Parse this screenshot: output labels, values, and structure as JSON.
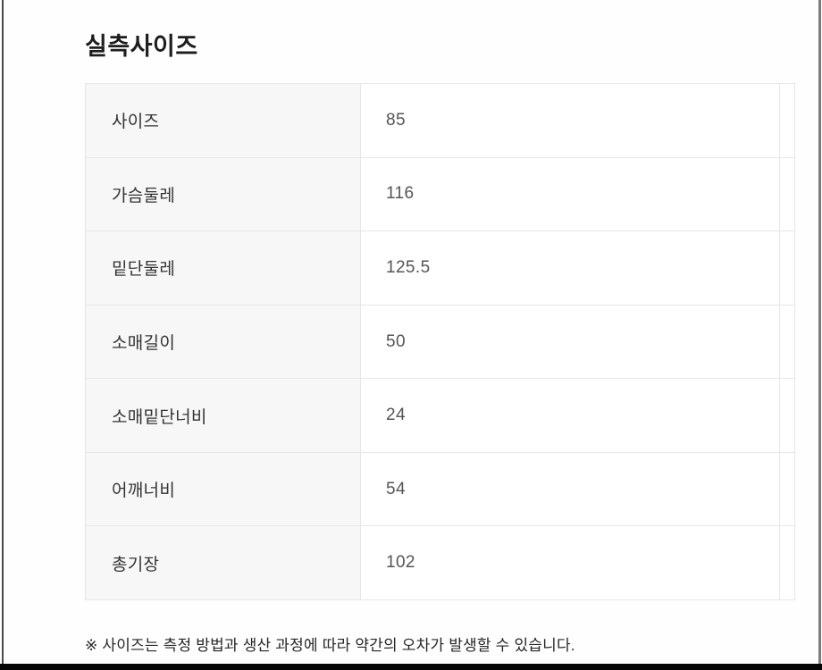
{
  "page": {
    "title": "실측사이즈",
    "footnote": "※ 사이즈는 측정 방법과 생산 과정에 따라 약간의 오차가 발생할 수 있습니다."
  },
  "size_table": {
    "rows": [
      {
        "label": "사이즈",
        "value": "85"
      },
      {
        "label": "가슴둘레",
        "value": "116"
      },
      {
        "label": "밑단둘레",
        "value": "125.5"
      },
      {
        "label": "소매길이",
        "value": "50"
      },
      {
        "label": "소매밑단너비",
        "value": "24"
      },
      {
        "label": "어깨너비",
        "value": "54"
      },
      {
        "label": "총기장",
        "value": "102"
      }
    ]
  },
  "colors": {
    "label_cell_background": "#f7f7f7",
    "table_border": "#e7e7e7",
    "title_text": "#1d1d1d",
    "value_text": "#555555",
    "frame_bottom": "#060606"
  }
}
